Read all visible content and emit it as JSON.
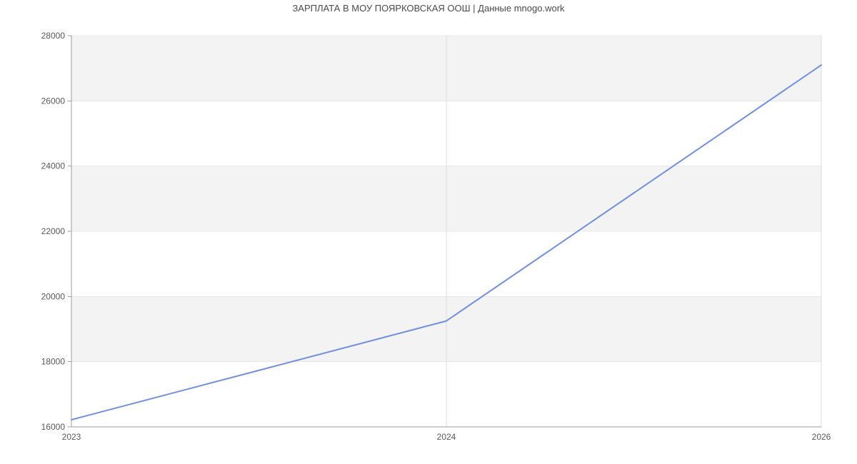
{
  "header": {
    "title": "ЗАРПЛАТА В МОУ ПОЯРКОВСКАЯ ООШ | Данные mnogo.work"
  },
  "chart_data": {
    "type": "line",
    "title": "ЗАРПЛАТА В МОУ ПОЯРКОВСКАЯ ООШ | Данные mnogo.work",
    "categories": [
      "2023",
      "2024",
      "2026"
    ],
    "series": [
      {
        "name": "ЗАРПЛАТА",
        "values": [
          16220,
          19250,
          27100
        ]
      }
    ],
    "ylim": [
      16000,
      28000
    ],
    "ytick_step": 2000,
    "ytick_labels": [
      "16000",
      "18000",
      "20000",
      "22000",
      "24000",
      "26000",
      "28000"
    ],
    "xlabel": "",
    "ylabel": "",
    "legend_position": "none",
    "layout_hints": {
      "alternating_horizontal_bands": true,
      "vertical_gridlines_at_categories": true,
      "x_axis_spacing": "categorical-even"
    }
  },
  "colors": {
    "background": "#ffffff",
    "plot_band": "#f3f3f3",
    "gridline_vertical": "#dedede",
    "gridline_horizontal": "#e8e8e8",
    "axis": "#9e9e9e",
    "tick_label": "#595959",
    "title_text": "#4a4a4a",
    "line": "#7090e0"
  }
}
